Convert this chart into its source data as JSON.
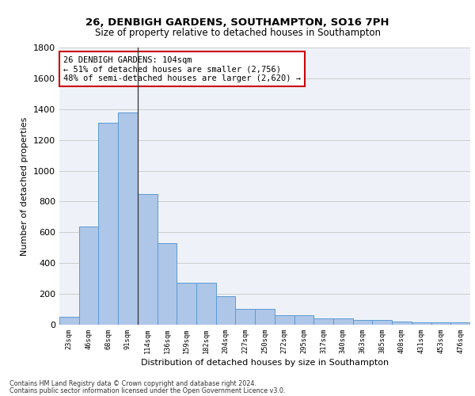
{
  "title_line1": "26, DENBIGH GARDENS, SOUTHAMPTON, SO16 7PH",
  "title_line2": "Size of property relative to detached houses in Southampton",
  "xlabel": "Distribution of detached houses by size in Southampton",
  "ylabel": "Number of detached properties",
  "footer_line1": "Contains HM Land Registry data © Crown copyright and database right 2024.",
  "footer_line2": "Contains public sector information licensed under the Open Government Licence v3.0.",
  "annotation_line1": "26 DENBIGH GARDENS: 104sqm",
  "annotation_line2": "← 51% of detached houses are smaller (2,756)",
  "annotation_line3": "48% of semi-detached houses are larger (2,620) →",
  "bar_labels": [
    "23sqm",
    "46sqm",
    "68sqm",
    "91sqm",
    "114sqm",
    "136sqm",
    "159sqm",
    "182sqm",
    "204sqm",
    "227sqm",
    "250sqm",
    "272sqm",
    "295sqm",
    "317sqm",
    "340sqm",
    "363sqm",
    "385sqm",
    "408sqm",
    "431sqm",
    "453sqm",
    "476sqm"
  ],
  "bar_values": [
    50,
    640,
    1310,
    1380,
    850,
    530,
    275,
    275,
    185,
    105,
    105,
    60,
    60,
    40,
    40,
    30,
    30,
    20,
    14,
    14,
    14
  ],
  "bar_color": "#aec6e8",
  "bar_edge_color": "#5b9bd5",
  "grid_color": "#cccccc",
  "bg_color": "#eef2f8",
  "annotation_box_color": "#cc0000",
  "vline_x_index": 4,
  "ylim": [
    0,
    1800
  ],
  "yticks": [
    0,
    200,
    400,
    600,
    800,
    1000,
    1200,
    1400,
    1600,
    1800
  ]
}
